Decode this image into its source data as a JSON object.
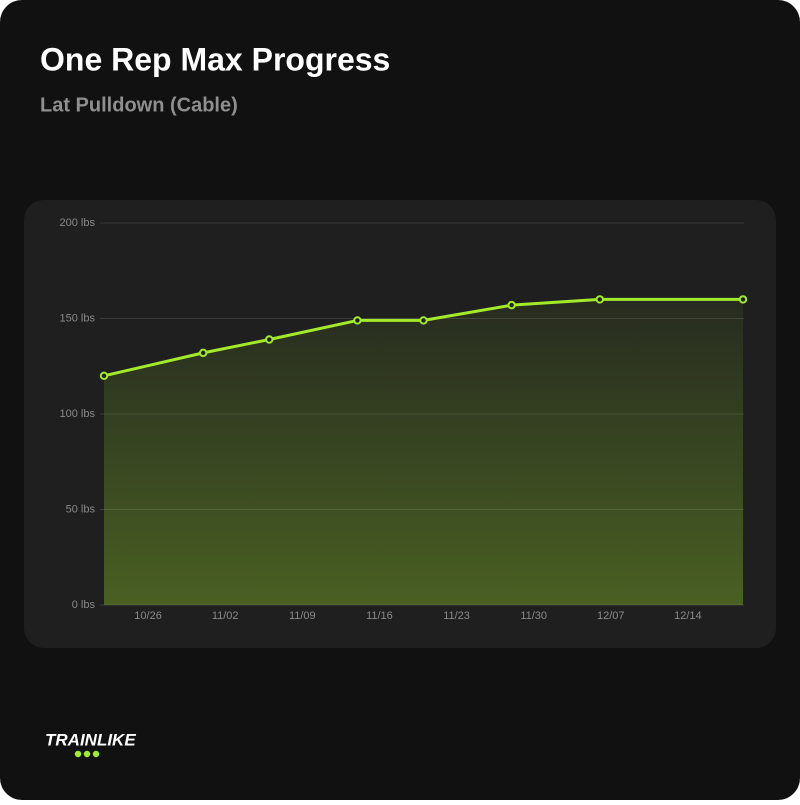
{
  "chart_data": {
    "type": "line",
    "title": "One Rep Max Progress",
    "subtitle": "Lat Pulldown (Cable)",
    "x": [
      "10/22",
      "10/31",
      "11/06",
      "11/14",
      "11/20",
      "11/28",
      "12/06",
      "12/19"
    ],
    "series": [
      {
        "name": "One Rep Max",
        "color": "#a3ea2a",
        "values": [
          120,
          132,
          139,
          149,
          149,
          157,
          160,
          160
        ]
      }
    ],
    "xlim": [
      "10/22",
      "12/19"
    ],
    "xticks": [
      "10/26",
      "11/02",
      "11/09",
      "11/16",
      "11/23",
      "11/30",
      "12/07",
      "12/14"
    ],
    "ylim": [
      0,
      200
    ],
    "yticks": [
      {
        "value": 0,
        "label": "0 lbs"
      },
      {
        "value": 50,
        "label": "50 lbs"
      },
      {
        "value": 100,
        "label": "100 lbs"
      },
      {
        "value": 150,
        "label": "150 lbs"
      },
      {
        "value": 200,
        "label": "200 lbs"
      }
    ],
    "grid": true
  },
  "brand": "TRAINLIKE"
}
